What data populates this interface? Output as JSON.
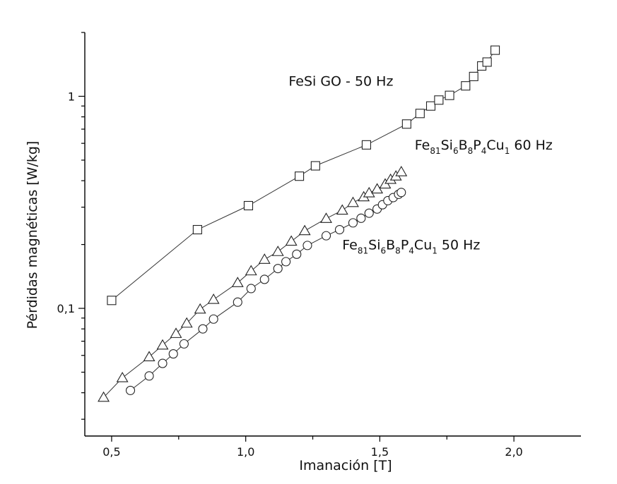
{
  "chart_data": {
    "type": "line",
    "xlabel": "Imanación [T]",
    "ylabel": "Pérdidas magnéticas [W/kg]",
    "xlim": [
      0.4,
      2.25
    ],
    "ylim": [
      0.025,
      2.0
    ],
    "yscale": "log",
    "grid": false,
    "x_ticks": [
      0.5,
      1.0,
      1.5,
      2.0
    ],
    "x_tick_labels": [
      "0,5",
      "1,0",
      "1,5",
      "2,0"
    ],
    "y_ticks": [
      0.1,
      1
    ],
    "y_tick_labels": [
      "0,1",
      "1"
    ],
    "series": [
      {
        "marker": "square",
        "x": [
          0.5,
          0.82,
          1.01,
          1.2,
          1.26,
          1.45,
          1.6,
          1.65,
          1.69,
          1.72,
          1.76,
          1.82,
          1.85,
          1.88,
          1.9,
          1.93
        ],
        "y": [
          0.109,
          0.235,
          0.305,
          0.42,
          0.47,
          0.59,
          0.74,
          0.83,
          0.9,
          0.96,
          1.01,
          1.12,
          1.24,
          1.39,
          1.45,
          1.65
        ]
      },
      {
        "marker": "triangle",
        "x": [
          0.47,
          0.54,
          0.64,
          0.69,
          0.74,
          0.78,
          0.83,
          0.88,
          0.97,
          1.02,
          1.07,
          1.12,
          1.17,
          1.22,
          1.3,
          1.36,
          1.4,
          1.44,
          1.46,
          1.49,
          1.52,
          1.54,
          1.56,
          1.58
        ],
        "y": [
          0.038,
          0.047,
          0.059,
          0.067,
          0.076,
          0.085,
          0.099,
          0.11,
          0.132,
          0.15,
          0.17,
          0.185,
          0.207,
          0.232,
          0.265,
          0.29,
          0.315,
          0.335,
          0.35,
          0.365,
          0.385,
          0.405,
          0.42,
          0.44
        ]
      },
      {
        "marker": "circle",
        "x": [
          0.57,
          0.64,
          0.69,
          0.73,
          0.77,
          0.84,
          0.88,
          0.97,
          1.02,
          1.07,
          1.12,
          1.15,
          1.19,
          1.23,
          1.3,
          1.35,
          1.4,
          1.43,
          1.46,
          1.49,
          1.51,
          1.53,
          1.55,
          1.57,
          1.58
        ],
        "y": [
          0.041,
          0.048,
          0.055,
          0.061,
          0.068,
          0.08,
          0.089,
          0.107,
          0.124,
          0.137,
          0.154,
          0.166,
          0.18,
          0.198,
          0.22,
          0.235,
          0.253,
          0.266,
          0.281,
          0.294,
          0.308,
          0.322,
          0.333,
          0.345,
          0.352
        ]
      }
    ],
    "annotations": [
      {
        "id": "fesi",
        "parts": [
          [
            "FeSi GO - 50 Hz",
            "n"
          ]
        ],
        "x": 1.16,
        "y": 1.12
      },
      {
        "id": "fe60",
        "parts": [
          [
            "Fe",
            "n"
          ],
          [
            "81",
            "s"
          ],
          [
            "Si",
            "n"
          ],
          [
            "6",
            "s"
          ],
          [
            "B",
            "n"
          ],
          [
            "8",
            "s"
          ],
          [
            "P",
            "n"
          ],
          [
            "4",
            "s"
          ],
          [
            "Cu",
            "n"
          ],
          [
            "1",
            "s"
          ],
          [
            " 60 Hz",
            "n"
          ]
        ],
        "x": 1.63,
        "y": 0.56
      },
      {
        "id": "fe50",
        "parts": [
          [
            "Fe",
            "n"
          ],
          [
            "81",
            "s"
          ],
          [
            "Si",
            "n"
          ],
          [
            "6",
            "s"
          ],
          [
            "B",
            "n"
          ],
          [
            "8",
            "s"
          ],
          [
            "P",
            "n"
          ],
          [
            "4",
            "s"
          ],
          [
            "Cu",
            "n"
          ],
          [
            "1",
            "s"
          ],
          [
            " 50 Hz",
            "n"
          ]
        ],
        "x": 1.36,
        "y": 0.19
      }
    ]
  }
}
